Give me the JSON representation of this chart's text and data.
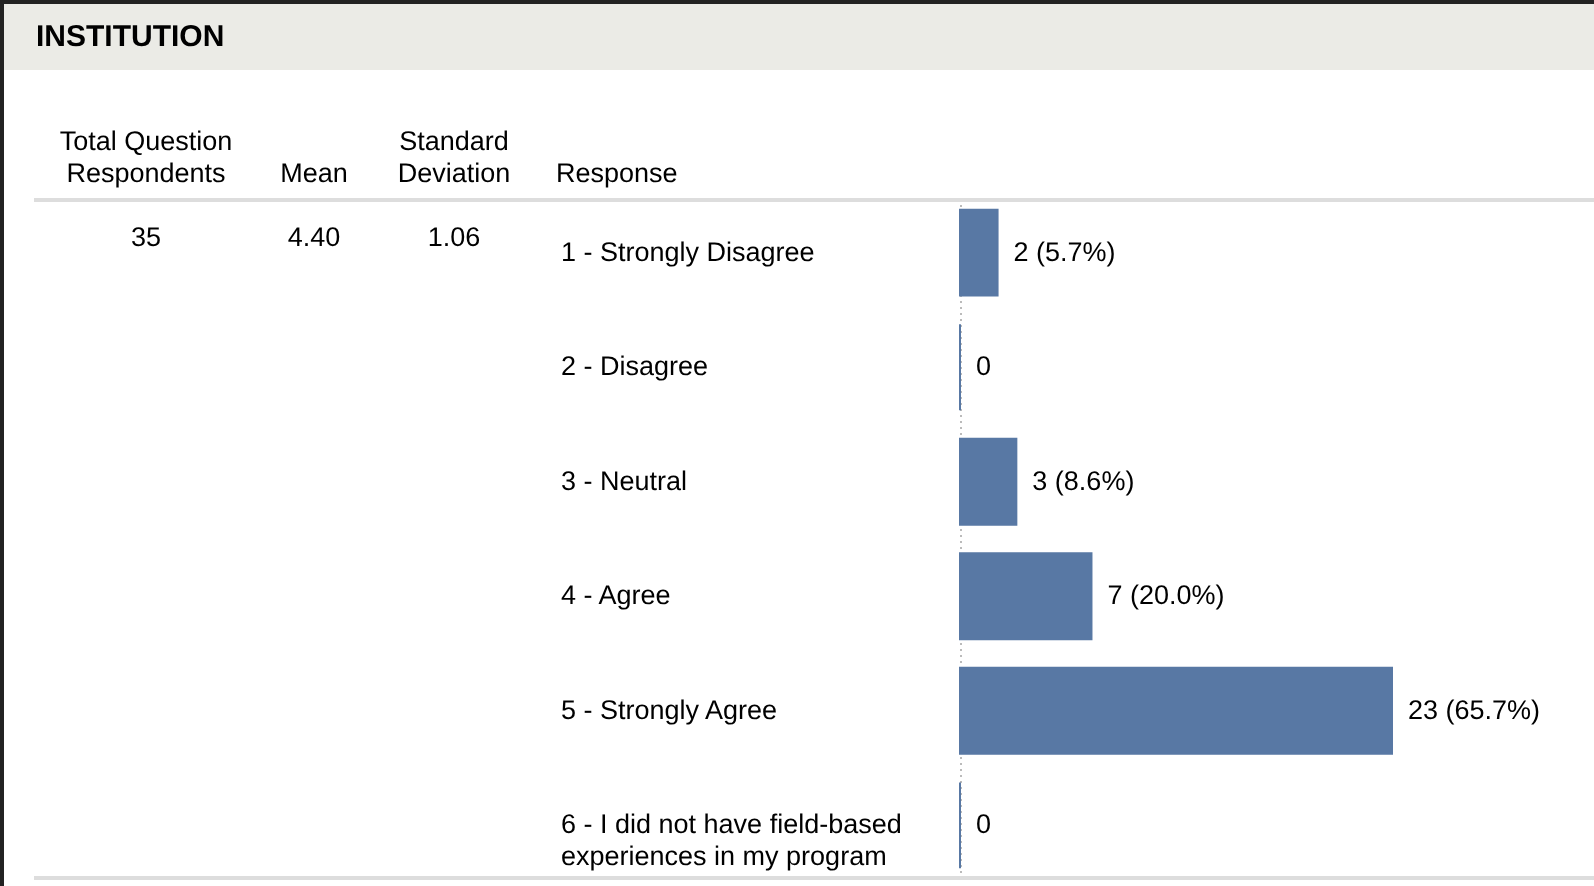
{
  "chart_data": {
    "type": "bar",
    "orientation": "horizontal",
    "title": "INSTITUTION",
    "ylabel": "Response",
    "annotations": [
      "Total Question Respondents",
      "Mean",
      "Standard Deviation",
      "35",
      "4.40",
      "1.06"
    ],
    "categories": [
      "1 - Strongly Disagree",
      "2 - Disagree",
      "3 - Neutral",
      "4 - Agree",
      "5 - Strongly Agree",
      "6 - I did not have field-based experiences in my program"
    ],
    "values": [
      2,
      0,
      3,
      7,
      23,
      0
    ],
    "value_labels": [
      "2 (5.7%)",
      "0",
      "3 (8.6%)",
      "7 (20.0%)",
      "23 (65.7%)",
      "0"
    ],
    "color": "#5878a4"
  }
}
